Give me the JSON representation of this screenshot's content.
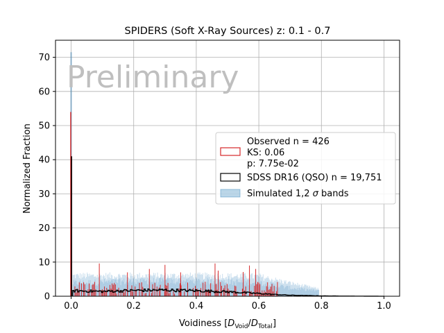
{
  "chart_data": {
    "type": "histogram",
    "title": "SPIDERS (Soft X-Ray Sources) z: 0.1 - 0.7",
    "xlabel": "Voidiness [D_Void/D_Total]",
    "ylabel": "Normalized Fraction",
    "xlim": [
      -0.05,
      1.05
    ],
    "ylim": [
      0,
      75
    ],
    "x_ticks": [
      0.0,
      0.2,
      0.4,
      0.6,
      0.8,
      1.0
    ],
    "x_tick_labels": [
      "0.0",
      "0.2",
      "0.4",
      "0.6",
      "0.8",
      "1.0"
    ],
    "y_ticks": [
      0,
      10,
      20,
      30,
      40,
      50,
      60,
      70
    ],
    "y_tick_labels": [
      "0",
      "10",
      "20",
      "30",
      "40",
      "50",
      "60",
      "70"
    ],
    "grid": true,
    "watermark": "Preliminary",
    "legend_position": "center-right",
    "legend": {
      "observed": [
        "Observed n = 426",
        "KS: 0.06",
        "p: 7.75e-02"
      ],
      "sdss": "SDSS DR16 (QSO) n = 19,751",
      "simulated_prefix": "Simulated 1,2 ",
      "simulated_sigma": "σ",
      "simulated_suffix": " bands"
    },
    "series": [
      {
        "name": "Observed n = 426",
        "color": "#d62728",
        "spike": {
          "x": 0.0,
          "y": 54
        },
        "secondary_spike": {
          "x": 0.0,
          "y": 41
        },
        "peaks": [
          [
            0.09,
            9.6
          ],
          [
            0.18,
            7.0
          ],
          [
            0.25,
            8.0
          ],
          [
            0.3,
            9.2
          ],
          [
            0.35,
            7.0
          ],
          [
            0.46,
            9.6
          ],
          [
            0.47,
            7.5
          ],
          [
            0.55,
            7.1
          ],
          [
            0.57,
            9.0
          ],
          [
            0.59,
            8.0
          ]
        ],
        "level": 2.4,
        "range": [
          0.005,
          0.66
        ]
      },
      {
        "name": "SDSS DR16 (QSO) n = 19,751",
        "color": "#000000",
        "spike": {
          "x": 0.0,
          "y": 41
        },
        "profile": [
          [
            0.005,
            1.6
          ],
          [
            0.1,
            1.4
          ],
          [
            0.2,
            1.7
          ],
          [
            0.3,
            1.8
          ],
          [
            0.4,
            1.6
          ],
          [
            0.5,
            1.3
          ],
          [
            0.6,
            0.8
          ],
          [
            0.65,
            0.5
          ],
          [
            0.7,
            0.3
          ],
          [
            0.8,
            0.1
          ],
          [
            0.9,
            0.03
          ],
          [
            1.0,
            0.0
          ]
        ]
      },
      {
        "name": "Simulated 1,2 σ bands",
        "color": "#1f77b4",
        "spike": {
          "x": 0.0,
          "y": 71.5
        },
        "band_1sigma": [
          [
            0.005,
            4.8
          ],
          [
            0.2,
            5.5
          ],
          [
            0.4,
            5.5
          ],
          [
            0.6,
            5.0
          ],
          [
            0.7,
            3.0
          ],
          [
            0.79,
            2.0
          ]
        ],
        "band_2sigma": [
          [
            0.005,
            7.0
          ],
          [
            0.2,
            7.0
          ],
          [
            0.4,
            7.0
          ],
          [
            0.6,
            6.8
          ],
          [
            0.7,
            4.5
          ],
          [
            0.79,
            2.5
          ]
        ]
      }
    ]
  }
}
